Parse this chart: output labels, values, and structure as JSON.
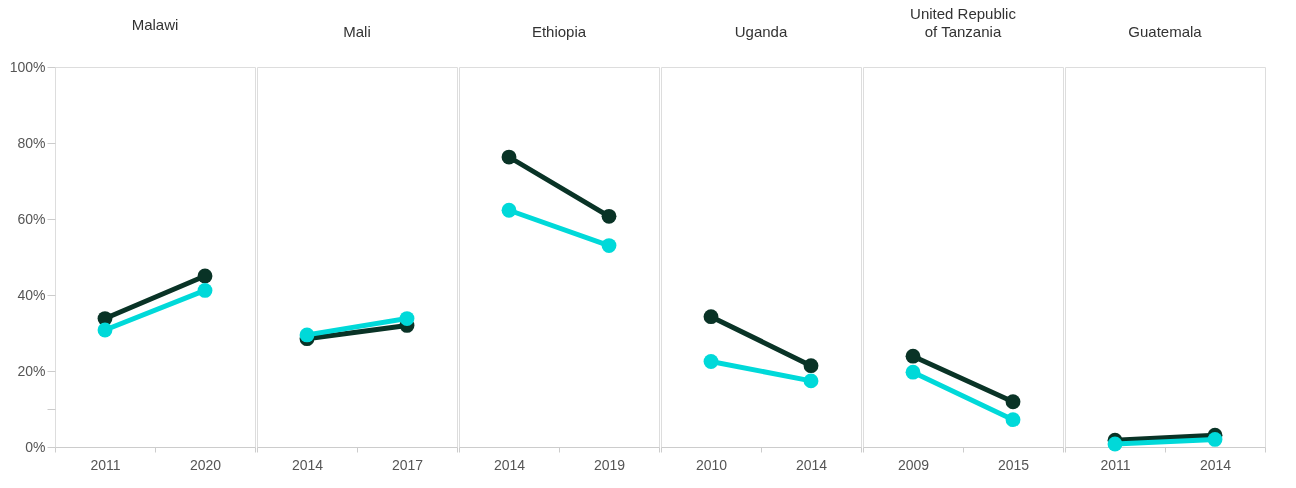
{
  "chart_data": [
    {
      "type": "line",
      "title": "Malawi",
      "categories": [
        "2011",
        "2020"
      ],
      "series": [
        {
          "color": "#093326",
          "values": [
            33.8,
            45
          ]
        },
        {
          "color": "#00d9d9",
          "values": [
            30.8,
            41.2
          ]
        }
      ],
      "ylim": [
        0,
        100
      ],
      "yticks": [
        {
          "value": 0,
          "label": "0%"
        },
        {
          "value": 10,
          "label": null
        },
        {
          "value": 20,
          "label": "20%"
        },
        {
          "value": 40,
          "label": "40%"
        },
        {
          "value": 60,
          "label": "60%"
        },
        {
          "value": 80,
          "label": "80%"
        },
        {
          "value": 100,
          "label": "100%"
        }
      ],
      "marker": "circle",
      "grid": false
    },
    {
      "type": "line",
      "title": "Mali",
      "categories": [
        "2014",
        "2017"
      ],
      "series": [
        {
          "color": "#093326",
          "values": [
            28.5,
            32
          ]
        },
        {
          "color": "#00d9d9",
          "values": [
            29.5,
            33.8
          ]
        }
      ],
      "ylim": [
        0,
        100
      ],
      "tick_labels": "x",
      "marker": "circle",
      "grid": false
    },
    {
      "type": "line",
      "title": "Ethiopia",
      "categories": [
        "2014",
        "2019"
      ],
      "series": [
        {
          "color": "#093326",
          "values": [
            76.3,
            60.7
          ]
        },
        {
          "color": "#00d9d9",
          "values": [
            62.3,
            53
          ]
        }
      ],
      "ylim": [
        0,
        100
      ],
      "tick_labels": "x",
      "marker": "circle",
      "grid": false
    },
    {
      "type": "line",
      "title": "Uganda",
      "categories": [
        "2010",
        "2014"
      ],
      "series": [
        {
          "color": "#093326",
          "values": [
            34.3,
            21.4
          ]
        },
        {
          "color": "#00d9d9",
          "values": [
            22.5,
            17.4
          ]
        }
      ],
      "ylim": [
        0,
        100
      ],
      "tick_labels": "x",
      "marker": "circle",
      "grid": false
    },
    {
      "type": "line",
      "title": "United Republic\nof Tanzania",
      "categories": [
        "2009",
        "2015"
      ],
      "series": [
        {
          "color": "#093326",
          "values": [
            23.9,
            11.9
          ]
        },
        {
          "color": "#00d9d9",
          "values": [
            19.7,
            7.2
          ]
        }
      ],
      "ylim": [
        0,
        100
      ],
      "tick_labels": "x",
      "marker": "circle",
      "grid": false
    },
    {
      "type": "line",
      "title": "Guatemala",
      "categories": [
        "2011",
        "2014"
      ],
      "series": [
        {
          "color": "#093326",
          "values": [
            1.8,
            3.1
          ]
        },
        {
          "color": "#00d9d9",
          "values": [
            0.8,
            2
          ]
        }
      ],
      "ylim": [
        0,
        100
      ],
      "tick_labels": "x",
      "marker": "circle",
      "grid": false
    }
  ]
}
